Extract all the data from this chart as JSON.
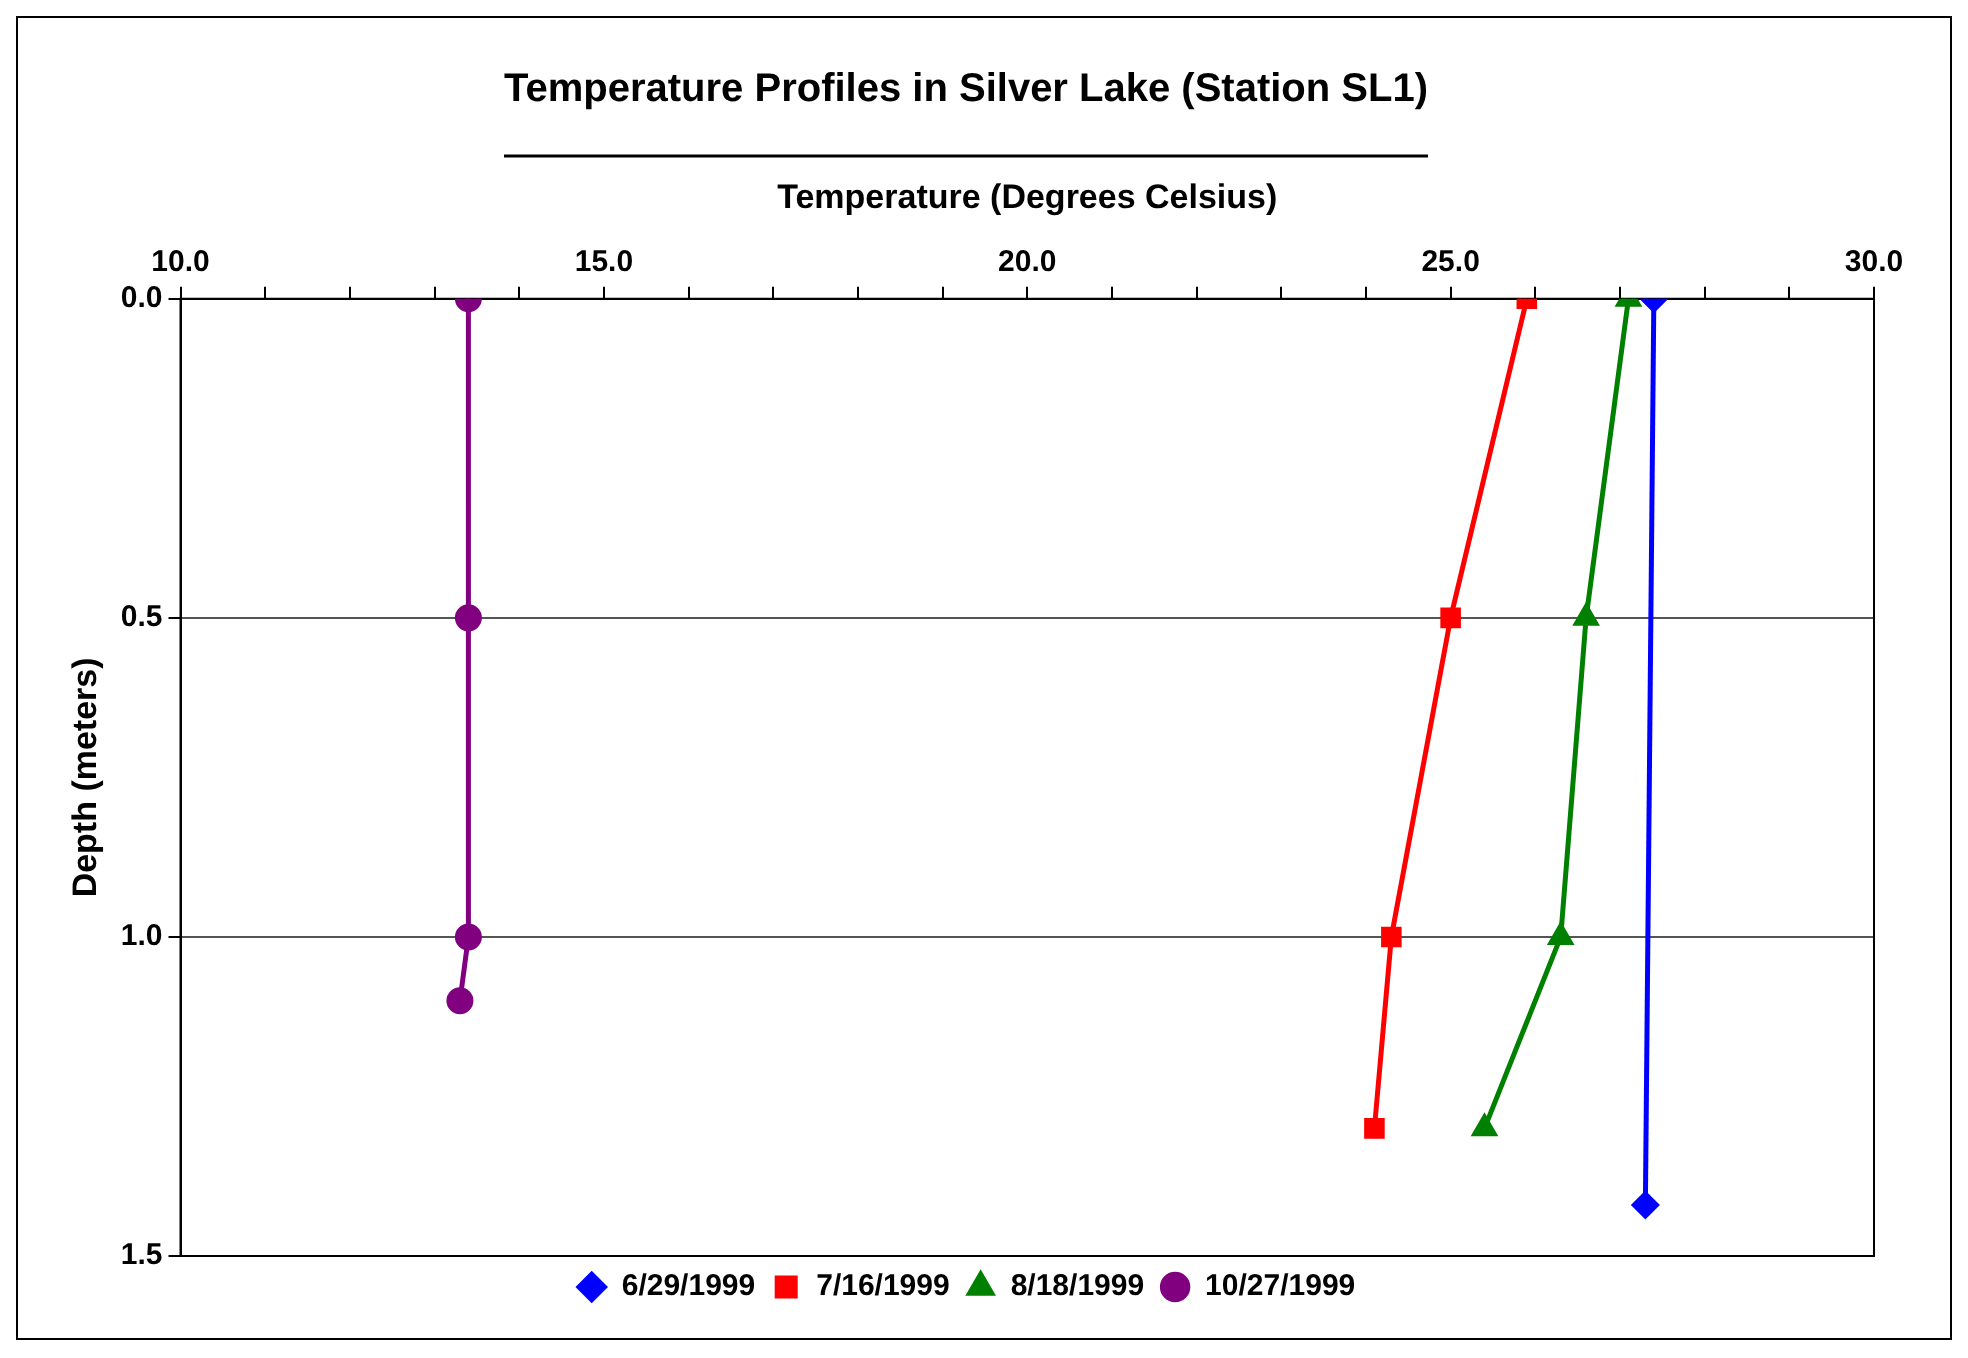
{
  "chart_data": {
    "type": "line",
    "title": "Temperature Profiles in Silver Lake (Station SL1)",
    "xlabel": "Temperature (Degrees Celsius)",
    "ylabel": "Depth (meters)",
    "xlim": [
      10,
      30
    ],
    "xticks": [
      {
        "value": 10,
        "label": "10.0"
      },
      {
        "value": 11,
        "label": null
      },
      {
        "value": 12,
        "label": null
      },
      {
        "value": 13,
        "label": null
      },
      {
        "value": 14,
        "label": null
      },
      {
        "value": 15,
        "label": "15.0"
      },
      {
        "value": 16,
        "label": null
      },
      {
        "value": 17,
        "label": null
      },
      {
        "value": 18,
        "label": null
      },
      {
        "value": 19,
        "label": null
      },
      {
        "value": 20,
        "label": "20.0"
      },
      {
        "value": 21,
        "label": null
      },
      {
        "value": 22,
        "label": null
      },
      {
        "value": 23,
        "label": null
      },
      {
        "value": 24,
        "label": null
      },
      {
        "value": 25,
        "label": "25.0"
      },
      {
        "value": 26,
        "label": null
      },
      {
        "value": 27,
        "label": null
      },
      {
        "value": 28,
        "label": null
      },
      {
        "value": 29,
        "label": null
      },
      {
        "value": 30,
        "label": "30.0"
      }
    ],
    "ylim": [
      1.5,
      0
    ],
    "yticks": [
      {
        "value": 0,
        "label": "0.0"
      },
      {
        "value": 0.5,
        "label": "0.5"
      },
      {
        "value": 1,
        "label": "1.0"
      },
      {
        "value": 1.5,
        "label": "1.5"
      }
    ],
    "grid": "y",
    "legend": "bottom",
    "line_style": "solid",
    "series": [
      {
        "name": "6/29/1999",
        "color": "#0000ff",
        "marker": "diamond",
        "x": [
          27.4,
          27.3
        ],
        "values": [
          0,
          1.42
        ]
      },
      {
        "name": "7/16/1999",
        "color": "#ff0000",
        "marker": "square",
        "x": [
          25.9,
          25.0,
          24.3,
          24.1
        ],
        "values": [
          0,
          0.5,
          1.0,
          1.3
        ]
      },
      {
        "name": "8/18/1999",
        "color": "#008000",
        "marker": "triangle",
        "x": [
          27.1,
          26.6,
          26.3,
          25.4
        ],
        "values": [
          0,
          0.5,
          1.0,
          1.3
        ]
      },
      {
        "name": "10/27/1999",
        "color": "#800080",
        "marker": "circle",
        "x": [
          13.4,
          13.4,
          13.4,
          13.3
        ],
        "values": [
          0,
          0.5,
          1.0,
          1.1
        ]
      }
    ]
  }
}
